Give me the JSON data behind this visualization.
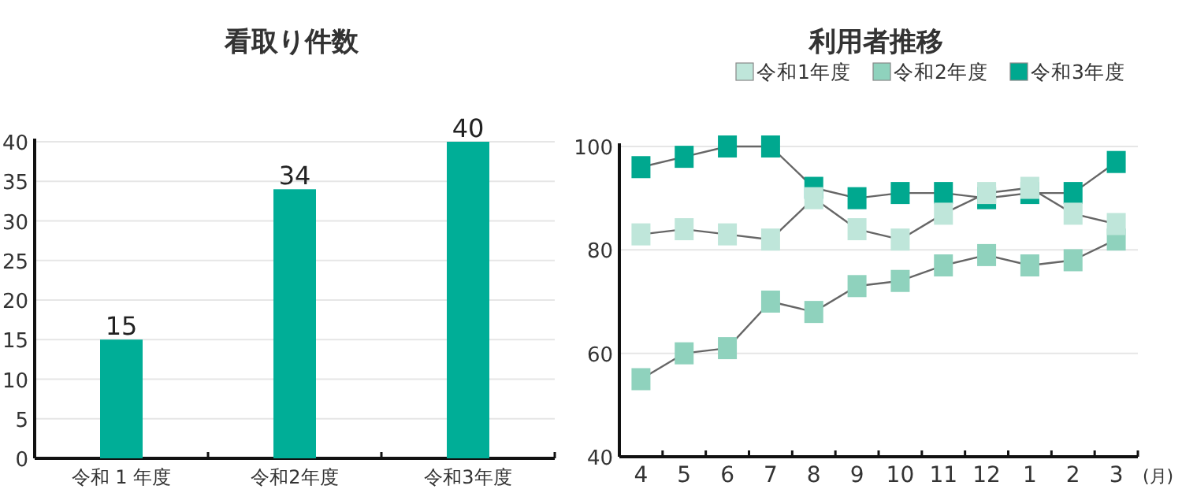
{
  "chart_data": [
    {
      "type": "bar",
      "title": "看取り件数",
      "categories": [
        "令和 1 年度",
        "令和2年度",
        "令和3年度"
      ],
      "values": [
        15,
        34,
        40
      ],
      "color": "#00ae97",
      "ylim": [
        0,
        40
      ],
      "yticks": [
        0,
        5,
        10,
        15,
        20,
        25,
        30,
        35,
        40
      ],
      "grid": "y",
      "data_labels": true,
      "legend": false
    },
    {
      "type": "line",
      "title": "利用者推移",
      "xlabel": "(月)",
      "categories": [
        "4",
        "5",
        "6",
        "7",
        "8",
        "9",
        "10",
        "11",
        "12",
        "1",
        "2",
        "3"
      ],
      "ylim": [
        40,
        100
      ],
      "yticks": [
        40,
        60,
        80,
        100
      ],
      "grid": "y",
      "legend": "top right",
      "marker": "square",
      "series": [
        {
          "name": "令和1年度",
          "color": "#bfe6da",
          "values": [
            83,
            84,
            83,
            82,
            90,
            84,
            82,
            87,
            91,
            92,
            87,
            85
          ]
        },
        {
          "name": "令和2年度",
          "color": "#8fd2bd",
          "values": [
            55,
            60,
            61,
            70,
            68,
            73,
            74,
            77,
            79,
            77,
            78,
            82
          ]
        },
        {
          "name": "令和3年度",
          "color": "#00a88f",
          "values": [
            96,
            98,
            100,
            100,
            92,
            90,
            91,
            91,
            90,
            91,
            91,
            97
          ]
        }
      ]
    }
  ]
}
